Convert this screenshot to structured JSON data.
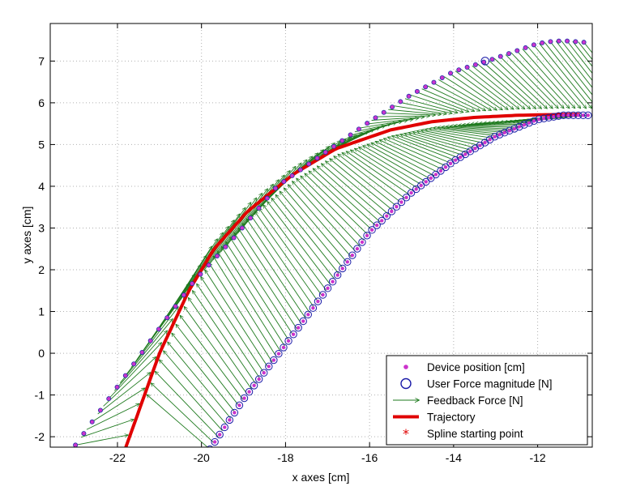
{
  "chart_data": {
    "type": "scatter",
    "title": "",
    "xlabel": "x axes [cm]",
    "ylabel": "y axes [cm]",
    "xlim": [
      -23.6,
      -10.7
    ],
    "ylim": [
      -2.25,
      7.9
    ],
    "xticks": [
      -22,
      -20,
      -18,
      -16,
      -14,
      -12
    ],
    "xtick_labels": [
      "-22",
      "-20",
      "-18",
      "-16",
      "-14",
      "-12"
    ],
    "yticks": [
      -2,
      -1,
      0,
      1,
      2,
      3,
      4,
      5,
      6,
      7
    ],
    "ytick_labels": [
      "-2",
      "-1",
      "0",
      "1",
      "2",
      "3",
      "4",
      "5",
      "6",
      "7"
    ],
    "grid": true,
    "legend_position": "bottom-right",
    "colors": {
      "device": "#cc33cc",
      "device_edge": "#2233aa",
      "user_force": "#1a1aa8",
      "feedback": "#1e7a1e",
      "trajectory": "#e00000",
      "spline": "#e00000"
    },
    "legend": [
      {
        "key": "device",
        "label": "Device position [cm]"
      },
      {
        "key": "user_force",
        "label": "User Force magnitude [N]"
      },
      {
        "key": "feedback",
        "label": "Feedback Force [N]"
      },
      {
        "key": "trajectory",
        "label": "Trajectory"
      },
      {
        "key": "spline",
        "label": "Spline starting point"
      }
    ],
    "trajectory": {
      "x": [
        -21.8,
        -21.0,
        -20.3,
        -19.7,
        -18.9,
        -17.8,
        -16.8,
        -15.5,
        -14.5,
        -13.5,
        -12.5,
        -11.5,
        -11.0
      ],
      "y": [
        -2.25,
        0.0,
        1.5,
        2.5,
        3.4,
        4.3,
        4.9,
        5.35,
        5.55,
        5.65,
        5.7,
        5.72,
        5.72
      ]
    },
    "device_outer": {
      "x": [
        -23.0,
        -22.0,
        -21.0,
        -20.2,
        -19.2,
        -18.2,
        -17.0,
        -16.0,
        -15.0,
        -14.0,
        -13.2,
        -12.0,
        -11.6,
        -11.3,
        -10.9
      ],
      "y": [
        -2.2,
        -0.8,
        0.6,
        1.7,
        2.8,
        4.0,
        4.85,
        5.55,
        6.2,
        6.75,
        7.0,
        7.42,
        7.48,
        7.48,
        7.45
      ]
    },
    "device_inner": {
      "x": [
        -19.8,
        -19.0,
        -18.0,
        -17.0,
        -16.0,
        -15.0,
        -14.0,
        -13.0,
        -12.0,
        -11.4,
        -11.2,
        -11.0,
        -10.8
      ],
      "y": [
        -2.3,
        -1.1,
        0.2,
        1.55,
        2.9,
        3.85,
        4.6,
        5.2,
        5.6,
        5.7,
        5.7,
        5.7,
        5.7
      ]
    },
    "user_force_marker_count": 78,
    "feedback_arrow_count": 92
  }
}
